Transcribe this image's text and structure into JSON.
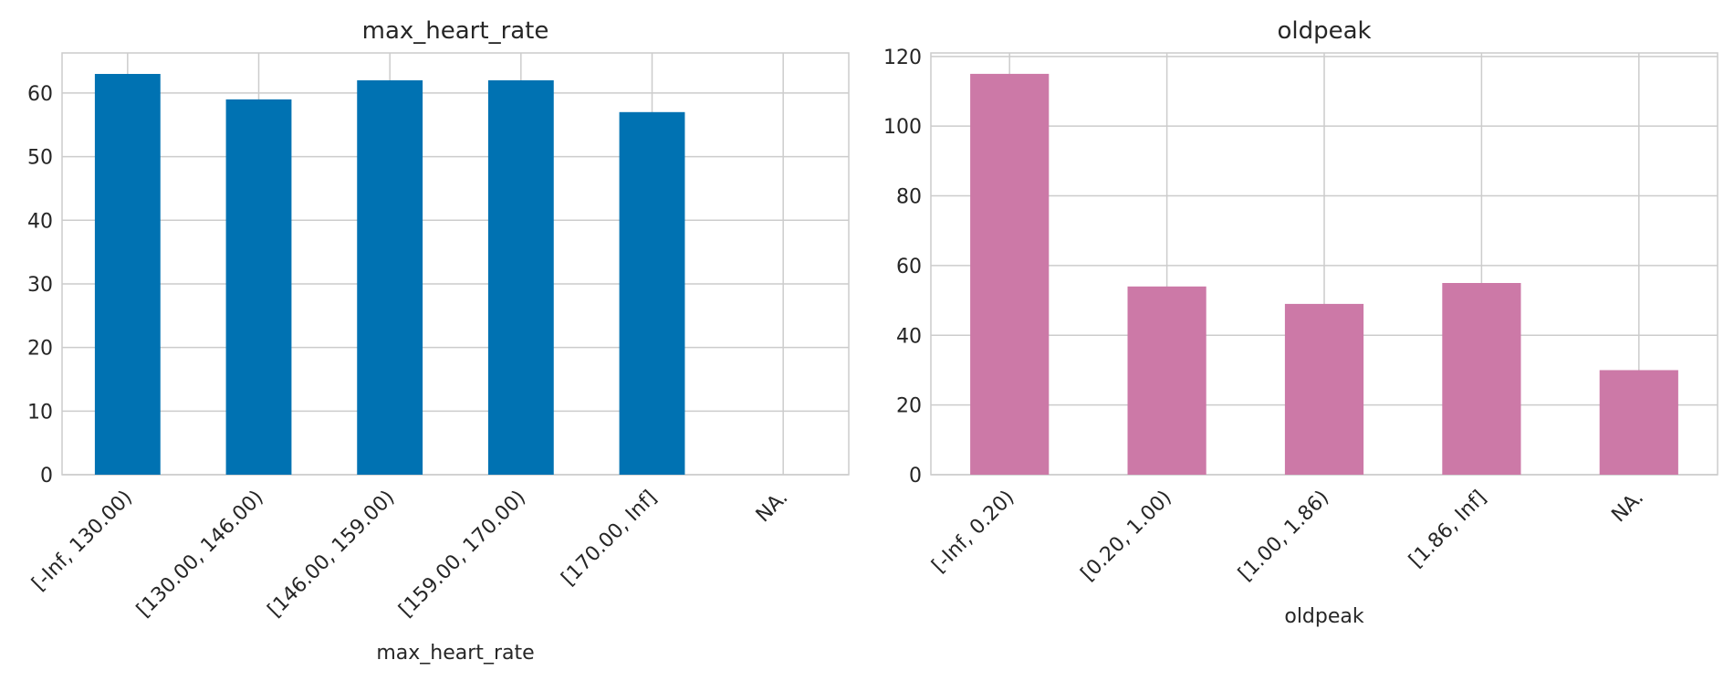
{
  "chart_data": [
    {
      "type": "bar",
      "title": "max_heart_rate",
      "xlabel": "max_heart_rate",
      "ylabel": "",
      "categories": [
        "[-Inf, 130.00)",
        "[130.00, 146.00)",
        "[146.00, 159.00)",
        "[159.00, 170.00)",
        "[170.00, Inf]",
        "NA."
      ],
      "values": [
        63,
        59,
        62,
        62,
        57,
        0
      ],
      "ylim": [
        0,
        66.3
      ],
      "yticks": [
        0,
        10,
        20,
        30,
        40,
        50,
        60
      ],
      "color": "#0072b2",
      "grid": true
    },
    {
      "type": "bar",
      "title": "oldpeak",
      "xlabel": "oldpeak",
      "ylabel": "",
      "categories": [
        "[-Inf, 0.20)",
        "[0.20, 1.00)",
        "[1.00, 1.86)",
        "[1.86, Inf]",
        "NA."
      ],
      "values": [
        115,
        54,
        49,
        55,
        30
      ],
      "ylim": [
        0,
        121
      ],
      "yticks": [
        0,
        20,
        40,
        60,
        80,
        100,
        120
      ],
      "color": "#cc79a7",
      "grid": true
    }
  ]
}
